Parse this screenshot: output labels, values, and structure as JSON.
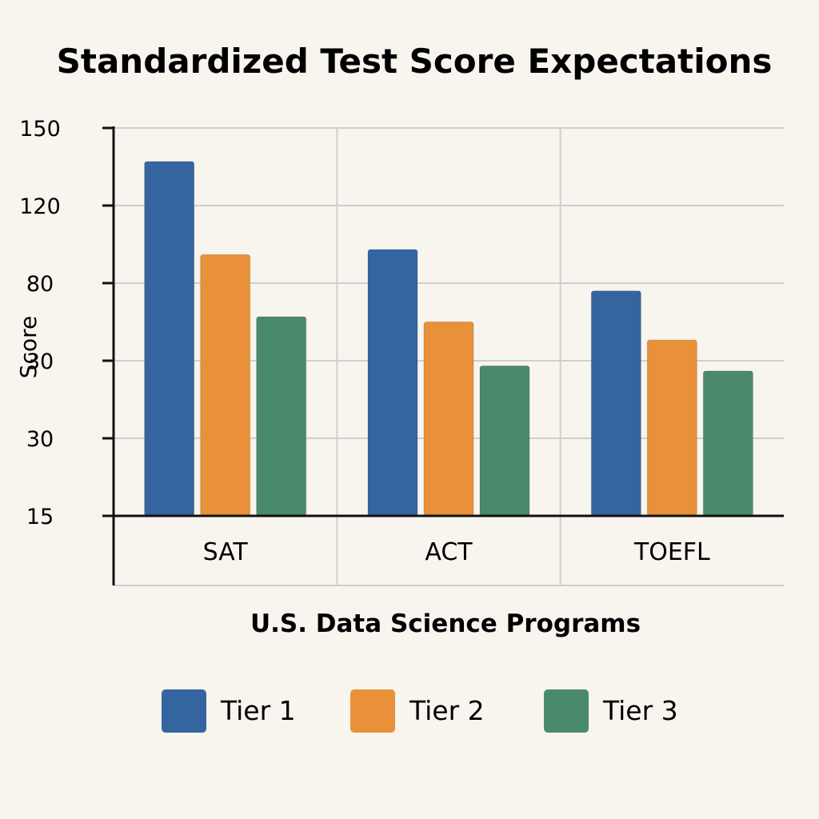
{
  "chart_data": {
    "type": "bar",
    "title": "Standardized Test Score Expectations",
    "xlabel": "U.S. Data Science Programs",
    "ylabel": "Score",
    "categories": [
      "SAT",
      "ACT",
      "TOEFL"
    ],
    "ytick_labels": [
      "150",
      "120",
      "80",
      "30",
      "30",
      "15"
    ],
    "ylim": [
      0,
      150
    ],
    "grid": true,
    "legend_position": "bottom",
    "series": [
      {
        "name": "Tier 1",
        "color": "#3565a1",
        "values": [
          137,
          103,
          87
        ]
      },
      {
        "name": "Tier 2",
        "color": "#e8913a",
        "values": [
          101,
          75,
          68
        ]
      },
      {
        "name": "Tier 3",
        "color": "#4a8a6a",
        "values": [
          77,
          58,
          56
        ]
      }
    ]
  }
}
